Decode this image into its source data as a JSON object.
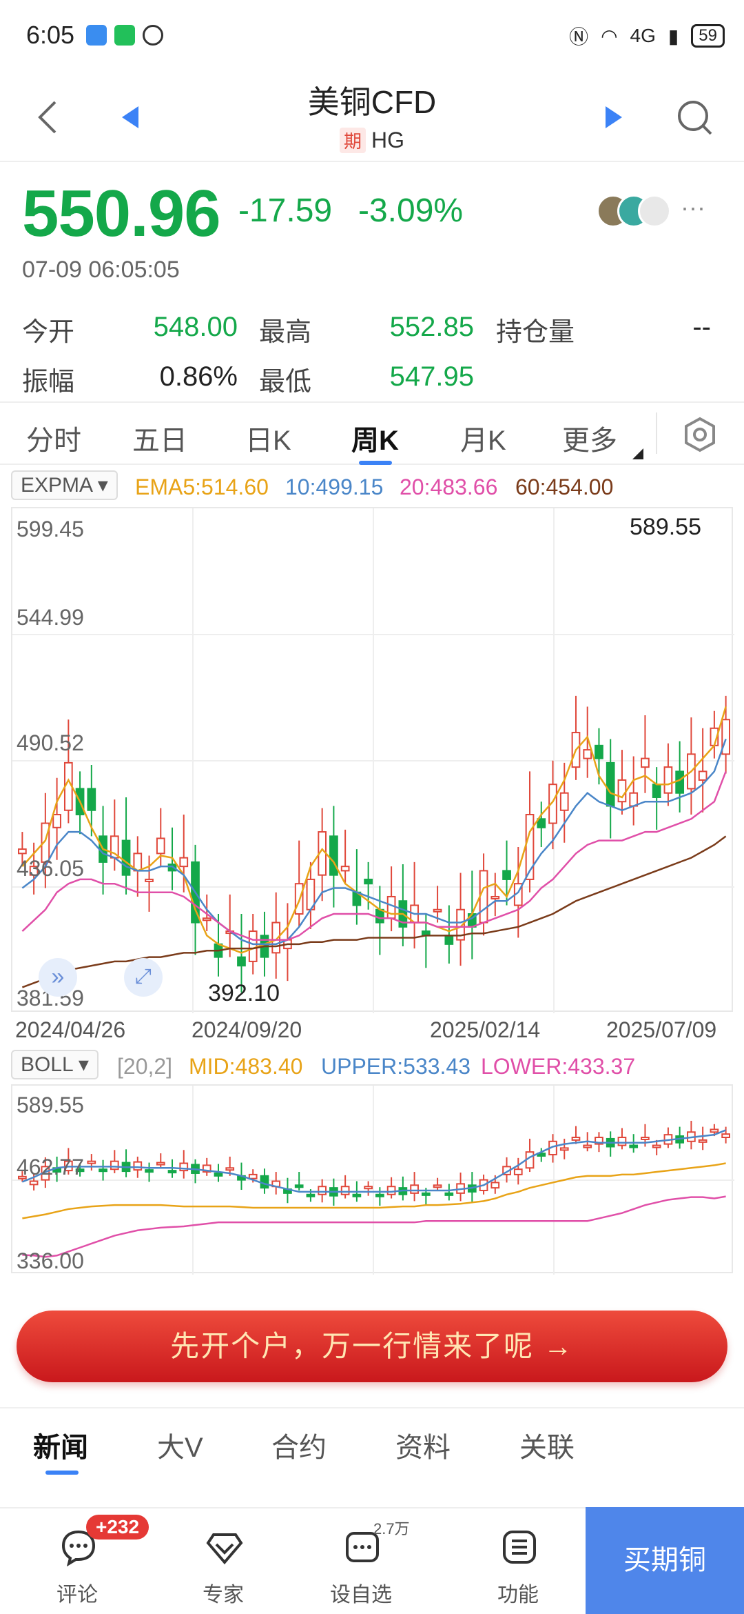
{
  "status": {
    "time": "6:05",
    "network": "4G",
    "battery": "59"
  },
  "header": {
    "title": "美铜CFD",
    "tag": "期",
    "code": "HG"
  },
  "quote": {
    "price": "550.96",
    "change": "-17.59",
    "change_pct": "-3.09%",
    "time": "07-09 06:05:05",
    "more": "···"
  },
  "stats": [
    {
      "label": "今开",
      "value": "548.00",
      "color": "#14a84a"
    },
    {
      "label": "最高",
      "value": "552.85",
      "color": "#14a84a"
    },
    {
      "label": "持仓量",
      "value": "--",
      "color": "#222222"
    },
    {
      "label": "振幅",
      "value": "0.86%",
      "color": "#222222"
    },
    {
      "label": "最低",
      "value": "547.95",
      "color": "#14a84a"
    }
  ],
  "period_tabs": [
    "分时",
    "五日",
    "日K",
    "周K",
    "月K",
    "更多"
  ],
  "active_tab": "周K",
  "ema": {
    "selector": "EXPMA ▾",
    "ema5": "EMA5:514.60",
    "ema10": "10:499.15",
    "ema20": "20:483.66",
    "ema60": "60:454.00"
  },
  "boll": {
    "selector": "BOLL ▾",
    "params": "[20,2]",
    "mid": "MID:483.40",
    "upper": "UPPER:533.43",
    "lower": "LOWER:433.37"
  },
  "colors": {
    "up": "#e0473a",
    "down": "#14a84a",
    "accent": "#3b82f6",
    "ema5": "#e8a317",
    "ema10": "#4a86c8",
    "ema20": "#e04fa8",
    "ema60": "#7a3b1a"
  },
  "chart_data": [
    {
      "type": "candlestick",
      "title": "周K",
      "ylim": [
        381.59,
        599.45
      ],
      "y_ticks": [
        "599.45",
        "544.99",
        "490.52",
        "436.05",
        "381.59"
      ],
      "x_ticks": [
        "2024/04/26",
        "2024/09/20",
        "2025/02/14",
        "2025/07/09"
      ],
      "annotations": [
        "589.55",
        "392.10"
      ],
      "series": [
        {
          "name": "EMA5",
          "values": [
            440,
            446,
            452,
            470,
            480,
            470,
            458,
            448,
            446,
            442,
            438,
            440,
            445,
            444,
            436,
            420,
            408,
            404,
            402,
            400,
            402,
            404,
            406,
            412,
            424,
            440,
            448,
            442,
            432,
            428,
            424,
            420,
            418,
            418,
            414,
            414,
            412,
            410,
            412,
            418,
            430,
            432,
            426,
            438,
            456,
            464,
            470,
            480,
            494,
            500,
            482,
            474,
            472,
            480,
            482,
            478,
            478,
            480,
            484,
            490,
            496,
            514
          ]
        },
        {
          "name": "EMA10",
          "values": [
            430,
            434,
            440,
            450,
            456,
            456,
            452,
            446,
            444,
            440,
            438,
            438,
            440,
            440,
            436,
            428,
            420,
            414,
            410,
            406,
            404,
            404,
            404,
            406,
            412,
            420,
            428,
            430,
            430,
            428,
            426,
            424,
            422,
            420,
            418,
            418,
            416,
            414,
            414,
            416,
            420,
            424,
            424,
            428,
            438,
            446,
            452,
            460,
            468,
            474,
            470,
            468,
            466,
            468,
            470,
            470,
            470,
            472,
            474,
            478,
            484,
            499
          ]
        },
        {
          "name": "EMA20",
          "values": [
            410,
            415,
            420,
            428,
            432,
            434,
            434,
            432,
            432,
            430,
            428,
            428,
            428,
            428,
            426,
            422,
            418,
            414,
            410,
            408,
            406,
            406,
            406,
            406,
            408,
            412,
            416,
            418,
            418,
            418,
            418,
            416,
            416,
            414,
            414,
            414,
            412,
            412,
            412,
            412,
            414,
            416,
            418,
            420,
            424,
            430,
            434,
            440,
            446,
            450,
            452,
            452,
            452,
            454,
            456,
            456,
            458,
            460,
            462,
            466,
            470,
            484
          ]
        },
        {
          "name": "EMA60",
          "values": [
            384,
            386,
            388,
            390,
            392,
            393,
            394,
            395,
            396,
            396,
            397,
            398,
            398,
            399,
            400,
            400,
            401,
            401,
            402,
            402,
            402,
            403,
            403,
            404,
            404,
            405,
            405,
            406,
            406,
            406,
            407,
            407,
            407,
            407,
            407,
            408,
            408,
            408,
            408,
            409,
            409,
            410,
            411,
            412,
            414,
            416,
            418,
            421,
            424,
            426,
            428,
            430,
            432,
            434,
            436,
            438,
            440,
            442,
            444,
            447,
            450,
            454
          ]
        }
      ]
    },
    {
      "type": "candlestick",
      "title": "BOLL",
      "ylim": [
        336.0,
        589.55
      ],
      "y_ticks": [
        "589.55",
        "462.77",
        "336.00"
      ],
      "series": [
        {
          "name": "UPPER",
          "values": [
            455,
            462,
            470,
            476,
            478,
            478,
            478,
            478,
            478,
            477,
            477,
            476,
            476,
            476,
            475,
            474,
            472,
            470,
            468,
            464,
            458,
            452,
            448,
            444,
            440,
            440,
            440,
            440,
            440,
            440,
            440,
            440,
            440,
            442,
            442,
            442,
            442,
            442,
            444,
            446,
            450,
            460,
            470,
            480,
            492,
            500,
            508,
            512,
            514,
            516,
            514,
            514,
            514,
            514,
            514,
            516,
            518,
            520,
            522,
            524,
            526,
            533
          ]
        },
        {
          "name": "MID",
          "values": [
            400,
            403,
            406,
            410,
            414,
            416,
            418,
            419,
            420,
            420,
            420,
            420,
            420,
            419,
            418,
            418,
            418,
            418,
            418,
            417,
            416,
            416,
            416,
            416,
            416,
            416,
            416,
            416,
            416,
            416,
            416,
            416,
            417,
            418,
            418,
            420,
            420,
            421,
            422,
            424,
            426,
            430,
            436,
            440,
            446,
            450,
            454,
            458,
            462,
            464,
            464,
            464,
            466,
            466,
            468,
            470,
            472,
            474,
            476,
            478,
            480,
            483
          ]
        },
        {
          "name": "LOWER",
          "values": [
            345,
            344,
            342,
            344,
            350,
            356,
            362,
            368,
            374,
            378,
            382,
            384,
            386,
            387,
            388,
            390,
            392,
            394,
            394,
            394,
            394,
            394,
            394,
            394,
            394,
            394,
            394,
            394,
            394,
            394,
            394,
            394,
            394,
            394,
            394,
            396,
            396,
            396,
            396,
            396,
            396,
            396,
            396,
            396,
            396,
            396,
            396,
            396,
            396,
            396,
            400,
            404,
            408,
            414,
            420,
            424,
            428,
            430,
            432,
            432,
            430,
            433
          ]
        }
      ]
    }
  ],
  "cta": {
    "label": "先开个户，万一行情来了呢 →"
  },
  "news_tabs": [
    "新闻",
    "大V",
    "合约",
    "资料",
    "关联"
  ],
  "bottom": {
    "items": [
      {
        "label": "评论",
        "icon": "comment-icon"
      },
      {
        "label": "专家",
        "icon": "diamond-icon"
      },
      {
        "label": "设自选",
        "icon": "watchlist-icon"
      },
      {
        "label": "功能",
        "icon": "menu-icon"
      }
    ],
    "badge": "+232",
    "watch_count": "2.7万",
    "buy": "买期铜"
  }
}
